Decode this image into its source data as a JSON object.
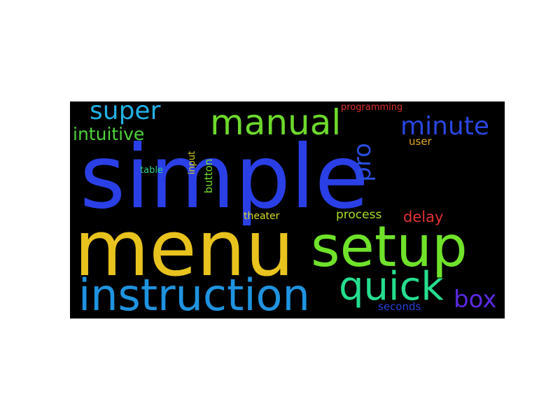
{
  "words": [
    {
      "text": "simple",
      "color": "#2a3fe6"
    },
    {
      "text": "menu",
      "color": "#e8c31e"
    },
    {
      "text": "setup",
      "color": "#6fe22a"
    },
    {
      "text": "instruction",
      "color": "#1f93df"
    },
    {
      "text": "quick",
      "color": "#25de8e"
    },
    {
      "text": "manual",
      "color": "#6dd92c"
    },
    {
      "text": "minute",
      "color": "#2a46e0"
    },
    {
      "text": "super",
      "color": "#22b2e3"
    },
    {
      "text": "intuitive",
      "color": "#4fd33a"
    },
    {
      "text": "pro",
      "color": "#2a4ddc"
    },
    {
      "text": "box",
      "color": "#5a2ae0"
    },
    {
      "text": "delay",
      "color": "#e03232"
    },
    {
      "text": "process",
      "color": "#a7de28"
    },
    {
      "text": "theater",
      "color": "#d7de28"
    },
    {
      "text": "button",
      "color": "#6ddc2a"
    },
    {
      "text": "input",
      "color": "#d6ce2a"
    },
    {
      "text": "table",
      "color": "#2ad48a"
    },
    {
      "text": "user",
      "color": "#e0a62a"
    },
    {
      "text": "programming",
      "color": "#e0302a"
    },
    {
      "text": "seconds",
      "color": "#2a40d8"
    }
  ]
}
